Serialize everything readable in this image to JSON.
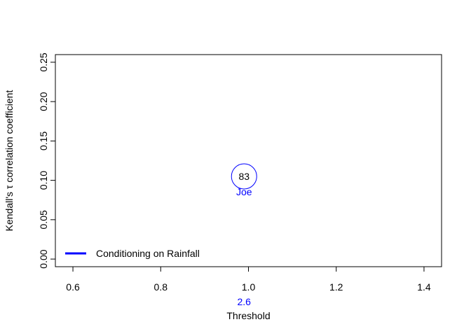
{
  "chart_data": {
    "type": "scatter",
    "title": "",
    "xlabel": "Threshold",
    "ylabel": "Kendall's τ correlation coefficient",
    "xlim": [
      0.56,
      1.44
    ],
    "ylim": [
      -0.0097,
      0.2597
    ],
    "x_ticks": [
      0.6,
      0.8,
      1.0,
      1.2,
      1.4
    ],
    "x_tick_labels": [
      "0.6",
      "0.8",
      "1.0",
      "1.2",
      "1.4"
    ],
    "y_ticks": [
      0.0,
      0.05,
      0.1,
      0.15,
      0.2,
      0.25
    ],
    "y_tick_labels": [
      "0.00",
      "0.05",
      "0.10",
      "0.15",
      "0.20",
      "0.25"
    ],
    "grid": false,
    "points": [
      {
        "x": 0.99,
        "y": 0.105,
        "label_inside": "83",
        "label_below": "Joe",
        "threshold_value_label": "2.6",
        "color": "#0000ff"
      }
    ],
    "legend": {
      "position": "bottom-left",
      "entries": [
        {
          "label": "Conditioning on Rainfall",
          "color": "#0000ff"
        }
      ]
    }
  }
}
